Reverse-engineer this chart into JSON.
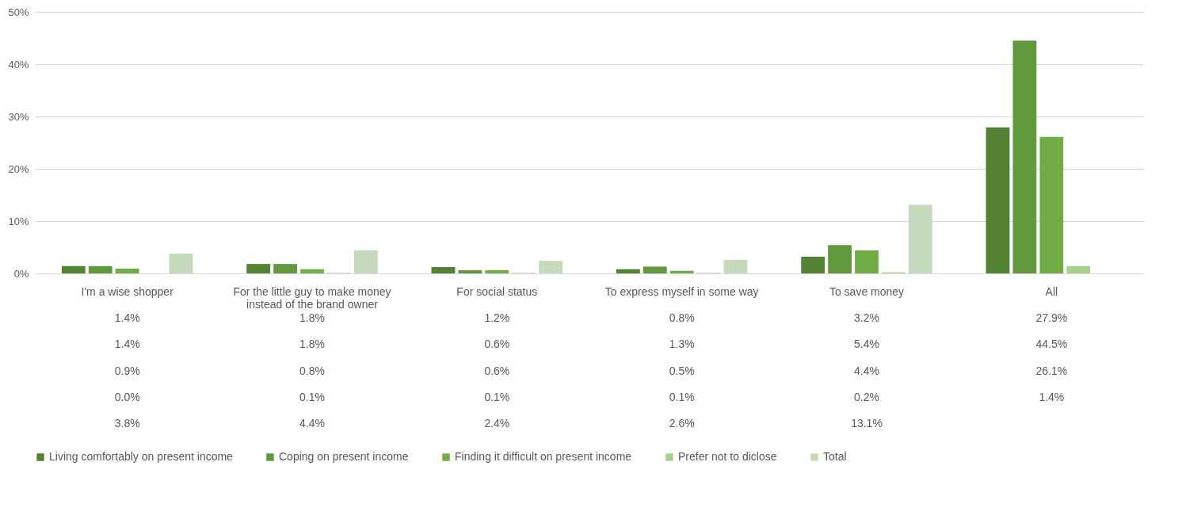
{
  "chart_data": {
    "type": "bar",
    "categories": [
      "I'm a wise shopper",
      "For the little guy to make money instead of the brand owner",
      "For social status",
      "To express myself in some way",
      "To save money",
      "All"
    ],
    "series": [
      {
        "name": "Living comfortably on present income",
        "color": "#548235",
        "values": [
          1.4,
          1.8,
          1.2,
          0.8,
          3.2,
          27.9
        ],
        "value_labels": [
          "1.4%",
          "1.8%",
          "1.2%",
          "0.8%",
          "3.2%",
          "27.9%"
        ]
      },
      {
        "name": "Coping on present income",
        "color": "#62993e",
        "values": [
          1.4,
          1.8,
          0.6,
          1.3,
          5.4,
          44.5
        ],
        "value_labels": [
          "1.4%",
          "1.8%",
          "0.6%",
          "1.3%",
          "5.4%",
          "44.5%"
        ]
      },
      {
        "name": "Finding it difficult on present income",
        "color": "#70ad47",
        "values": [
          0.9,
          0.8,
          0.6,
          0.5,
          4.4,
          26.1
        ],
        "value_labels": [
          "0.9%",
          "0.8%",
          "0.6%",
          "0.5%",
          "4.4%",
          "26.1%"
        ]
      },
      {
        "name": "Prefer not to diclose",
        "color": "#a9d08e",
        "values": [
          0.0,
          0.1,
          0.1,
          0.1,
          0.2,
          1.4
        ],
        "value_labels": [
          "0.0%",
          "0.1%",
          "0.1%",
          "0.1%",
          "0.2%",
          "1.4%"
        ]
      },
      {
        "name": "Total",
        "color": "#c5d9bc",
        "values": [
          3.8,
          4.4,
          2.4,
          2.6,
          13.1,
          null
        ],
        "value_labels": [
          "3.8%",
          "4.4%",
          "2.4%",
          "2.6%",
          "13.1%",
          null
        ]
      }
    ],
    "ylim": [
      0,
      50
    ],
    "yticks": [
      {
        "value": 0,
        "label": "0%"
      },
      {
        "value": 10,
        "label": "10%"
      },
      {
        "value": 20,
        "label": "20%"
      },
      {
        "value": 30,
        "label": "30%"
      },
      {
        "value": 40,
        "label": "40%"
      },
      {
        "value": 50,
        "label": "50%"
      }
    ],
    "grid": "y",
    "legend": "bottom"
  }
}
